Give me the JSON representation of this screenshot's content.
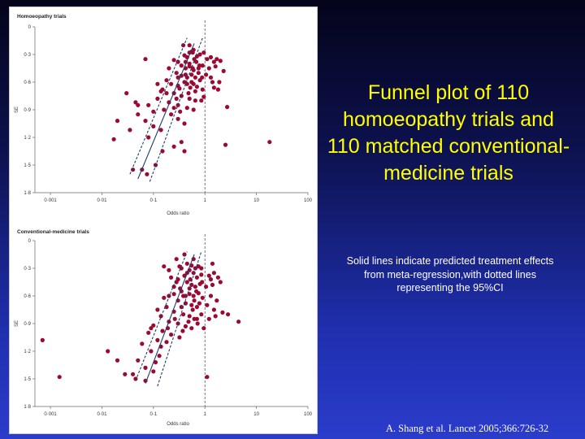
{
  "slide": {
    "title": "Funnel plot of 110 homoeopathy trials and 110 matched conventional-medicine trials",
    "note": "Solid lines indicate predicted treatment effects from meta-regression,with dotted lines representing the 95%CI",
    "citation": "A. Shang et al. Lancet 2005;366:726-32"
  },
  "colors": {
    "point": "#9b0a32",
    "line": "#1f3c6e",
    "ref_line": "#555555"
  },
  "chart_data": [
    {
      "type": "scatter",
      "title": "Homoeopathy trials",
      "xlabel": "Odds ratio",
      "ylabel": "SE",
      "x_scale": "log",
      "xlim": [
        0.0005,
        100
      ],
      "ylim": [
        0,
        1.8
      ],
      "y_inverted": true,
      "x_ticks": [
        0.001,
        0.01,
        0.1,
        1,
        10,
        100
      ],
      "x_tick_labels": [
        "0·001",
        "0·01",
        "0·1",
        "1",
        "10",
        "100"
      ],
      "y_ticks": [
        0,
        0.3,
        0.6,
        0.9,
        1.2,
        1.5,
        1.8
      ],
      "y_tick_labels": [
        "0",
        "0·3",
        "0·6",
        "0·9",
        "1·2",
        "1·5",
        "1·8"
      ],
      "reference_line_x": 1,
      "fit_line": [
        [
          0.05,
          1.65
        ],
        [
          0.62,
          0.18
        ]
      ],
      "ci_lower": [
        [
          0.035,
          1.6
        ],
        [
          0.45,
          0.12
        ]
      ],
      "ci_upper": [
        [
          0.085,
          1.68
        ],
        [
          0.9,
          0.12
        ]
      ],
      "points": [
        [
          0.55,
          0.27
        ],
        [
          0.6,
          0.25
        ],
        [
          0.5,
          0.28
        ],
        [
          0.4,
          0.31
        ],
        [
          0.45,
          0.33
        ],
        [
          0.62,
          0.35
        ],
        [
          0.7,
          0.32
        ],
        [
          0.8,
          0.3
        ],
        [
          1.1,
          0.35
        ],
        [
          1.3,
          0.33
        ],
        [
          1.5,
          0.38
        ],
        [
          1.7,
          0.35
        ],
        [
          2.0,
          0.37
        ],
        [
          0.3,
          0.38
        ],
        [
          0.35,
          0.42
        ],
        [
          0.25,
          0.36
        ],
        [
          0.42,
          0.45
        ],
        [
          0.5,
          0.43
        ],
        [
          0.6,
          0.47
        ],
        [
          0.75,
          0.45
        ],
        [
          0.9,
          0.42
        ],
        [
          1.2,
          0.45
        ],
        [
          1.6,
          0.43
        ],
        [
          2.3,
          0.48
        ],
        [
          0.2,
          0.45
        ],
        [
          0.28,
          0.5
        ],
        [
          0.35,
          0.53
        ],
        [
          0.45,
          0.55
        ],
        [
          0.55,
          0.52
        ],
        [
          0.65,
          0.55
        ],
        [
          0.8,
          0.58
        ],
        [
          1.05,
          0.52
        ],
        [
          1.3,
          0.55
        ],
        [
          1.9,
          0.6
        ],
        [
          0.18,
          0.58
        ],
        [
          0.22,
          0.62
        ],
        [
          0.3,
          0.64
        ],
        [
          0.4,
          0.6
        ],
        [
          0.52,
          0.66
        ],
        [
          0.7,
          0.65
        ],
        [
          0.9,
          0.68
        ],
        [
          1.5,
          0.66
        ],
        [
          0.15,
          0.68
        ],
        [
          0.25,
          0.72
        ],
        [
          0.35,
          0.75
        ],
        [
          0.5,
          0.78
        ],
        [
          0.65,
          0.8
        ],
        [
          0.95,
          0.76
        ],
        [
          0.12,
          0.78
        ],
        [
          0.2,
          0.82
        ],
        [
          0.3,
          0.85
        ],
        [
          0.45,
          0.88
        ],
        [
          0.6,
          0.9
        ],
        [
          0.08,
          0.85
        ],
        [
          0.1,
          0.92
        ],
        [
          0.16,
          0.9
        ],
        [
          0.22,
          0.95
        ],
        [
          0.3,
          1.0
        ],
        [
          0.4,
          1.05
        ],
        [
          0.05,
          0.95
        ],
        [
          0.07,
          1.02
        ],
        [
          0.1,
          1.08
        ],
        [
          0.14,
          1.12
        ],
        [
          0.05,
          0.85
        ],
        [
          0.03,
          0.72
        ],
        [
          0.035,
          1.12
        ],
        [
          0.02,
          1.02
        ],
        [
          0.04,
          1.55
        ],
        [
          0.06,
          1.55
        ],
        [
          0.045,
          0.82
        ],
        [
          0.15,
          1.35
        ],
        [
          0.075,
          1.6
        ],
        [
          0.11,
          1.5
        ],
        [
          0.25,
          1.3
        ],
        [
          0.35,
          1.25
        ],
        [
          0.08,
          1.2
        ],
        [
          0.07,
          0.35
        ],
        [
          0.14,
          0.7
        ],
        [
          0.3,
          0.55
        ],
        [
          0.5,
          0.2
        ],
        [
          0.55,
          0.6
        ],
        [
          0.65,
          0.7
        ],
        [
          0.4,
          1.35
        ],
        [
          0.95,
          0.28
        ],
        [
          1.4,
          0.6
        ],
        [
          1.8,
          0.68
        ],
        [
          2.7,
          0.87
        ],
        [
          2.5,
          1.28
        ],
        [
          18.0,
          1.25
        ],
        [
          0.017,
          1.22
        ],
        [
          0.38,
          0.2
        ],
        [
          0.42,
          0.38
        ],
        [
          0.5,
          0.4
        ],
        [
          0.75,
          0.5
        ],
        [
          0.85,
          0.8
        ],
        [
          0.6,
          0.62
        ],
        [
          0.48,
          0.72
        ],
        [
          0.28,
          0.78
        ],
        [
          0.12,
          0.62
        ],
        [
          0.33,
          0.92
        ],
        [
          0.45,
          0.62
        ],
        [
          0.58,
          0.45
        ],
        [
          0.68,
          0.38
        ],
        [
          0.78,
          0.42
        ],
        [
          0.88,
          0.55
        ],
        [
          0.32,
          0.67
        ],
        [
          0.58,
          0.28
        ],
        [
          0.42,
          0.52
        ],
        [
          0.25,
          0.88
        ],
        [
          0.18,
          0.72
        ]
      ]
    },
    {
      "type": "scatter",
      "title": "Conventional-medicine trials",
      "xlabel": "Odds ratio",
      "ylabel": "SE",
      "x_scale": "log",
      "xlim": [
        0.0005,
        100
      ],
      "ylim": [
        0,
        1.8
      ],
      "y_inverted": true,
      "x_ticks": [
        0.001,
        0.01,
        0.1,
        1,
        10,
        100
      ],
      "x_tick_labels": [
        "0·001",
        "0·01",
        "0·1",
        "1",
        "10",
        "100"
      ],
      "y_ticks": [
        0,
        0.3,
        0.6,
        0.9,
        1.2,
        1.5,
        1.8
      ],
      "y_tick_labels": [
        "0",
        "0·3",
        "0·6",
        "0·9",
        "1·2",
        "1·5",
        "1·8"
      ],
      "reference_line_x": 1,
      "fit_line": [
        [
          0.07,
          1.55
        ],
        [
          0.62,
          0.15
        ]
      ],
      "ci_lower": [
        [
          0.045,
          1.52
        ],
        [
          0.45,
          0.12
        ]
      ],
      "ci_upper": [
        [
          0.12,
          1.58
        ],
        [
          0.85,
          0.12
        ]
      ],
      "points": [
        [
          0.45,
          0.25
        ],
        [
          0.55,
          0.27
        ],
        [
          0.65,
          0.3
        ],
        [
          0.75,
          0.28
        ],
        [
          0.35,
          0.3
        ],
        [
          0.5,
          0.32
        ],
        [
          0.6,
          0.35
        ],
        [
          0.4,
          0.38
        ],
        [
          0.7,
          0.4
        ],
        [
          0.85,
          0.37
        ],
        [
          1.2,
          0.38
        ],
        [
          1.5,
          0.35
        ],
        [
          1.8,
          0.4
        ],
        [
          0.3,
          0.42
        ],
        [
          0.45,
          0.45
        ],
        [
          0.55,
          0.48
        ],
        [
          0.65,
          0.5
        ],
        [
          0.8,
          0.47
        ],
        [
          1.05,
          0.5
        ],
        [
          1.4,
          0.48
        ],
        [
          2.0,
          0.45
        ],
        [
          0.25,
          0.5
        ],
        [
          0.35,
          0.55
        ],
        [
          0.5,
          0.58
        ],
        [
          0.6,
          0.6
        ],
        [
          0.75,
          0.57
        ],
        [
          0.9,
          0.62
        ],
        [
          1.3,
          0.6
        ],
        [
          1.7,
          0.65
        ],
        [
          0.2,
          0.6
        ],
        [
          0.3,
          0.65
        ],
        [
          0.42,
          0.68
        ],
        [
          0.55,
          0.7
        ],
        [
          0.7,
          0.72
        ],
        [
          1.1,
          0.7
        ],
        [
          1.5,
          0.75
        ],
        [
          2.2,
          0.78
        ],
        [
          0.18,
          0.72
        ],
        [
          0.25,
          0.77
        ],
        [
          0.38,
          0.8
        ],
        [
          0.5,
          0.82
        ],
        [
          0.62,
          0.85
        ],
        [
          0.85,
          0.8
        ],
        [
          0.14,
          0.82
        ],
        [
          0.2,
          0.88
        ],
        [
          0.3,
          0.9
        ],
        [
          0.42,
          0.93
        ],
        [
          0.55,
          0.95
        ],
        [
          0.1,
          0.92
        ],
        [
          0.15,
          0.98
        ],
        [
          0.22,
          1.02
        ],
        [
          0.32,
          1.05
        ],
        [
          0.08,
          1.0
        ],
        [
          0.12,
          1.08
        ],
        [
          0.18,
          1.1
        ],
        [
          0.06,
          1.12
        ],
        [
          0.09,
          1.2
        ],
        [
          0.13,
          1.25
        ],
        [
          0.05,
          1.3
        ],
        [
          0.07,
          1.38
        ],
        [
          0.1,
          1.42
        ],
        [
          0.04,
          1.45
        ],
        [
          0.045,
          1.5
        ],
        [
          0.07,
          1.52
        ],
        [
          0.013,
          1.2
        ],
        [
          0.02,
          1.3
        ],
        [
          0.028,
          1.45
        ],
        [
          0.0015,
          1.48
        ],
        [
          0.0007,
          1.08
        ],
        [
          0.09,
          0.95
        ],
        [
          0.12,
          0.75
        ],
        [
          0.16,
          0.62
        ],
        [
          0.28,
          0.2
        ],
        [
          0.32,
          0.28
        ],
        [
          0.4,
          0.15
        ],
        [
          0.6,
          0.2
        ],
        [
          0.38,
          0.6
        ],
        [
          0.48,
          0.88
        ],
        [
          0.72,
          0.9
        ],
        [
          0.95,
          0.95
        ],
        [
          1.2,
          0.85
        ],
        [
          1.6,
          0.82
        ],
        [
          4.5,
          0.88
        ],
        [
          2.8,
          0.8
        ],
        [
          1.4,
          0.25
        ],
        [
          1.1,
          1.48
        ],
        [
          0.2,
          0.32
        ],
        [
          0.16,
          0.28
        ],
        [
          0.22,
          0.4
        ],
        [
          0.28,
          0.45
        ],
        [
          0.35,
          0.72
        ],
        [
          0.45,
          0.35
        ],
        [
          0.52,
          0.42
        ],
        [
          0.62,
          0.65
        ],
        [
          0.68,
          0.55
        ],
        [
          0.78,
          0.68
        ],
        [
          0.88,
          0.45
        ],
        [
          0.25,
          0.58
        ],
        [
          0.33,
          0.52
        ],
        [
          0.42,
          0.6
        ],
        [
          0.58,
          0.75
        ],
        [
          0.26,
          0.85
        ],
        [
          0.19,
          0.95
        ],
        [
          0.37,
          0.98
        ],
        [
          0.14,
          1.15
        ],
        [
          0.11,
          1.32
        ],
        [
          0.85,
          0.3
        ],
        [
          1.3,
          0.42
        ],
        [
          0.7,
          0.85
        ],
        [
          0.5,
          0.52
        ]
      ]
    }
  ]
}
